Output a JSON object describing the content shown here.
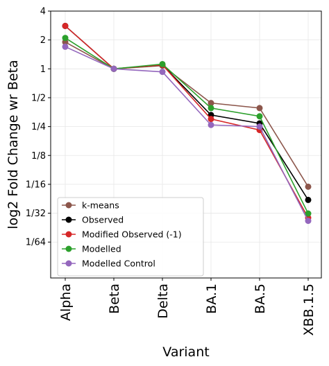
{
  "chart_data": {
    "type": "line",
    "title": "",
    "xlabel": "Variant",
    "ylabel": "log2 Fold Change wr Beta",
    "categories": [
      "Alpha",
      "Beta",
      "Delta",
      "BA.1",
      "BA.5",
      "XBB.1.5"
    ],
    "y_scale": "log2",
    "yticks": [
      {
        "value": 4,
        "label": "4"
      },
      {
        "value": 2,
        "label": "2"
      },
      {
        "value": 1,
        "label": "1"
      },
      {
        "value": 0.5,
        "label": "1/2"
      },
      {
        "value": 0.25,
        "label": "1/4"
      },
      {
        "value": 0.125,
        "label": "1/8"
      },
      {
        "value": 0.0625,
        "label": "1/16"
      },
      {
        "value": 0.03125,
        "label": "1/32"
      },
      {
        "value": 0.015625,
        "label": "1/64"
      }
    ],
    "ylim": [
      0.0066,
      4
    ],
    "grid": true,
    "legend_position": "lower-left",
    "series": [
      {
        "name": "k-means",
        "color": "#8c564b",
        "values": [
          1.9,
          1.0,
          1.08,
          0.44,
          0.39,
          0.059
        ]
      },
      {
        "name": "Observed",
        "color": "#000000",
        "values": [
          2.8,
          1.0,
          1.1,
          0.33,
          0.27,
          0.043
        ]
      },
      {
        "name": "Modified Observed (-1)",
        "color": "#d62728",
        "values": [
          2.8,
          1.0,
          1.1,
          0.3,
          0.23,
          0.028
        ]
      },
      {
        "name": "Modelled",
        "color": "#2ca02c",
        "values": [
          2.1,
          1.0,
          1.12,
          0.39,
          0.32,
          0.031
        ]
      },
      {
        "name": "Modelled Control",
        "color": "#9467bd",
        "values": [
          1.7,
          1.0,
          0.93,
          0.26,
          0.25,
          0.026
        ]
      }
    ]
  }
}
